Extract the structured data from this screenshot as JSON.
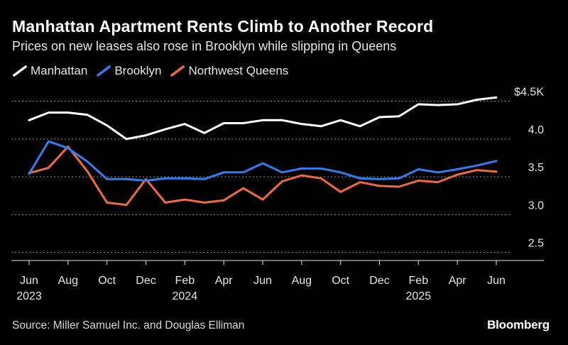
{
  "title": "Manhattan Apartment Rents Climb to Another Record",
  "subtitle": "Prices on new leases also rose in Brooklyn while slipping in Queens",
  "source": "Source: Miller Samuel Inc. and Douglas Elliman",
  "brand": "Bloomberg",
  "colors": {
    "background": "#000000",
    "Manhattan": "#ffffff",
    "Brooklyn": "#2f7ef2",
    "Northwest Queens": "#ef6a3c",
    "grid": "#8a8a8a"
  },
  "chart_data": {
    "type": "line",
    "title": "Manhattan Apartment Rents Climb to Another Record",
    "subtitle": "Prices on new leases also rose in Brooklyn while slipping in Queens",
    "x": [
      "2023-06",
      "2023-07",
      "2023-08",
      "2023-09",
      "2023-10",
      "2023-11",
      "2023-12",
      "2024-01",
      "2024-02",
      "2024-03",
      "2024-04",
      "2024-05",
      "2024-06",
      "2024-07",
      "2024-08",
      "2024-09",
      "2024-10",
      "2024-11",
      "2024-12",
      "2025-01",
      "2025-02",
      "2025-03",
      "2025-04",
      "2025-05",
      "2025-06"
    ],
    "x_ticks": [
      {
        "x": "2023-06",
        "label": "Jun",
        "year": "2023"
      },
      {
        "x": "2023-08",
        "label": "Aug",
        "year": ""
      },
      {
        "x": "2023-10",
        "label": "Oct",
        "year": ""
      },
      {
        "x": "2023-12",
        "label": "Dec",
        "year": ""
      },
      {
        "x": "2024-02",
        "label": "Feb",
        "year": "2024"
      },
      {
        "x": "2024-04",
        "label": "Apr",
        "year": ""
      },
      {
        "x": "2024-06",
        "label": "Jun",
        "year": ""
      },
      {
        "x": "2024-08",
        "label": "Aug",
        "year": ""
      },
      {
        "x": "2024-10",
        "label": "Oct",
        "year": ""
      },
      {
        "x": "2024-12",
        "label": "Dec",
        "year": ""
      },
      {
        "x": "2025-02",
        "label": "Feb",
        "year": "2025"
      },
      {
        "x": "2025-04",
        "label": "Apr",
        "year": ""
      },
      {
        "x": "2025-06",
        "label": "Jun",
        "year": ""
      }
    ],
    "y_ticks": [
      {
        "value": 4.5,
        "label": "$4.5K"
      },
      {
        "value": 4.0,
        "label": "4.0"
      },
      {
        "value": 3.5,
        "label": "3.5"
      },
      {
        "value": 3.0,
        "label": "3.0"
      },
      {
        "value": 2.5,
        "label": "2.5"
      }
    ],
    "ylim": [
      2.35,
      4.6
    ],
    "grid": true,
    "legend": "top-left",
    "series": [
      {
        "name": "Manhattan",
        "values": [
          4.25,
          4.35,
          4.35,
          4.32,
          4.18,
          4.0,
          4.05,
          4.13,
          4.2,
          4.08,
          4.21,
          4.21,
          4.25,
          4.25,
          4.2,
          4.17,
          4.25,
          4.17,
          4.29,
          4.3,
          4.46,
          4.45,
          4.46,
          4.52,
          4.55
        ]
      },
      {
        "name": "Brooklyn",
        "values": [
          3.54,
          3.97,
          3.88,
          3.7,
          3.47,
          3.47,
          3.45,
          3.48,
          3.48,
          3.47,
          3.56,
          3.56,
          3.68,
          3.56,
          3.61,
          3.61,
          3.56,
          3.48,
          3.47,
          3.48,
          3.6,
          3.56,
          3.6,
          3.65,
          3.71
        ]
      },
      {
        "name": "Northwest Queens",
        "values": [
          3.55,
          3.62,
          3.9,
          3.57,
          3.16,
          3.13,
          3.47,
          3.16,
          3.2,
          3.16,
          3.19,
          3.35,
          3.2,
          3.44,
          3.52,
          3.48,
          3.3,
          3.43,
          3.38,
          3.37,
          3.45,
          3.43,
          3.53,
          3.59,
          3.57
        ]
      }
    ]
  }
}
